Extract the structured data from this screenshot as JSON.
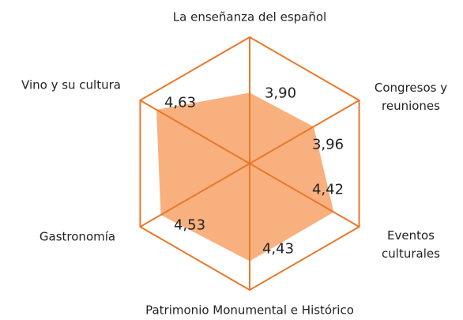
{
  "chart_data": {
    "type": "radar",
    "categories": [
      "La enseñanza del español",
      "Congresos y reuniones",
      "Eventos culturales",
      "Patrimonio Monumental e Histórico",
      "Gastronomía",
      "Vino y su cultura"
    ],
    "values": [
      3.9,
      3.96,
      4.42,
      4.43,
      4.53,
      4.63
    ],
    "value_labels": [
      "3,90",
      "3,96",
      "4,42",
      "4,43",
      "4,53",
      "4,63"
    ],
    "ylim": [
      2.5,
      5
    ],
    "color": "#f9b07f",
    "grid_color": "#e8782a"
  }
}
